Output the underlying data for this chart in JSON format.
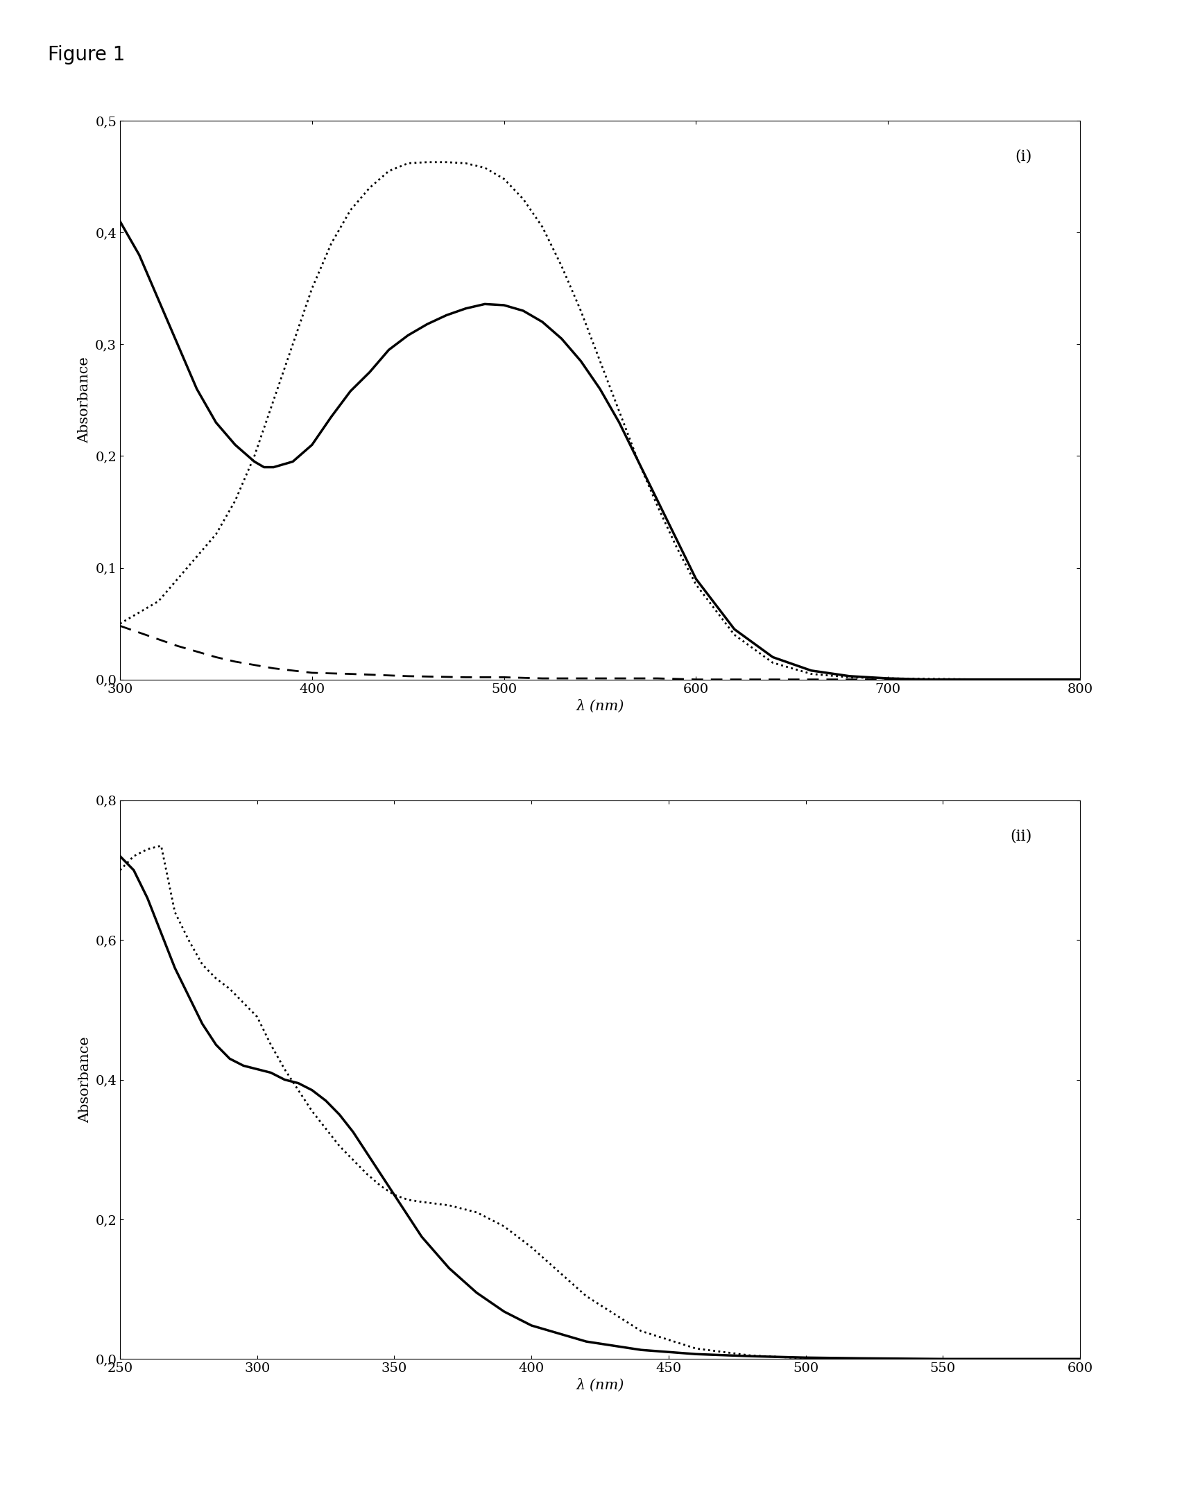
{
  "fig_label": "Figure 1",
  "plot1": {
    "label": "(i)",
    "xlim": [
      300,
      800
    ],
    "ylim": [
      0,
      0.5
    ],
    "xticks": [
      300,
      400,
      500,
      600,
      700,
      800
    ],
    "yticks": [
      0.0,
      0.1,
      0.2,
      0.3,
      0.4,
      0.5
    ],
    "xlabel": "λ (nm)",
    "ylabel": "Absorbance",
    "solid_x": [
      300,
      310,
      320,
      330,
      340,
      350,
      360,
      370,
      375,
      380,
      390,
      400,
      410,
      420,
      430,
      440,
      450,
      460,
      470,
      480,
      490,
      500,
      510,
      520,
      530,
      540,
      550,
      560,
      570,
      580,
      590,
      600,
      620,
      640,
      660,
      680,
      700,
      720,
      750,
      800
    ],
    "solid_y": [
      0.41,
      0.38,
      0.34,
      0.3,
      0.26,
      0.23,
      0.21,
      0.195,
      0.19,
      0.19,
      0.195,
      0.21,
      0.235,
      0.258,
      0.275,
      0.295,
      0.308,
      0.318,
      0.326,
      0.332,
      0.336,
      0.335,
      0.33,
      0.32,
      0.305,
      0.285,
      0.26,
      0.23,
      0.195,
      0.16,
      0.125,
      0.09,
      0.045,
      0.02,
      0.008,
      0.003,
      0.001,
      0.0,
      0.0,
      0.0
    ],
    "dotted_x": [
      300,
      310,
      320,
      330,
      340,
      350,
      360,
      370,
      380,
      390,
      400,
      410,
      420,
      430,
      440,
      450,
      460,
      470,
      480,
      490,
      500,
      510,
      520,
      530,
      540,
      550,
      560,
      570,
      580,
      590,
      600,
      620,
      640,
      660,
      680,
      700,
      750,
      800
    ],
    "dotted_y": [
      0.05,
      0.06,
      0.07,
      0.09,
      0.11,
      0.13,
      0.16,
      0.2,
      0.25,
      0.3,
      0.35,
      0.39,
      0.42,
      0.44,
      0.455,
      0.462,
      0.463,
      0.463,
      0.462,
      0.458,
      0.448,
      0.43,
      0.405,
      0.37,
      0.33,
      0.285,
      0.24,
      0.195,
      0.155,
      0.118,
      0.085,
      0.04,
      0.015,
      0.005,
      0.002,
      0.001,
      0.0,
      0.0
    ],
    "dashed_x": [
      300,
      310,
      320,
      330,
      340,
      350,
      360,
      370,
      380,
      390,
      400,
      420,
      450,
      480,
      500,
      520,
      550,
      580,
      600,
      650,
      700,
      750,
      800
    ],
    "dashed_y": [
      0.048,
      0.042,
      0.036,
      0.03,
      0.025,
      0.02,
      0.016,
      0.013,
      0.01,
      0.008,
      0.006,
      0.005,
      0.003,
      0.002,
      0.002,
      0.001,
      0.001,
      0.001,
      0.0,
      0.0,
      0.0,
      0.0,
      0.0
    ]
  },
  "plot2": {
    "label": "(ii)",
    "xlim": [
      250,
      600
    ],
    "ylim": [
      0,
      0.8
    ],
    "xticks": [
      250,
      300,
      350,
      400,
      450,
      500,
      550,
      600
    ],
    "yticks": [
      0.0,
      0.2,
      0.4,
      0.6,
      0.8
    ],
    "xlabel": "λ (nm)",
    "ylabel": "Absorbance",
    "solid_x": [
      250,
      255,
      260,
      265,
      270,
      275,
      280,
      285,
      290,
      295,
      300,
      305,
      310,
      315,
      320,
      325,
      330,
      335,
      340,
      345,
      350,
      360,
      370,
      380,
      390,
      400,
      420,
      440,
      460,
      480,
      500,
      520,
      550,
      580,
      600
    ],
    "solid_y": [
      0.72,
      0.7,
      0.66,
      0.61,
      0.56,
      0.52,
      0.48,
      0.45,
      0.43,
      0.42,
      0.415,
      0.41,
      0.4,
      0.395,
      0.385,
      0.37,
      0.35,
      0.325,
      0.295,
      0.265,
      0.235,
      0.175,
      0.13,
      0.095,
      0.068,
      0.048,
      0.025,
      0.013,
      0.007,
      0.004,
      0.002,
      0.001,
      0.0,
      0.0,
      0.0
    ],
    "dotted_x": [
      250,
      255,
      260,
      265,
      270,
      275,
      280,
      285,
      290,
      295,
      300,
      305,
      310,
      315,
      320,
      325,
      330,
      335,
      340,
      345,
      350,
      355,
      360,
      370,
      380,
      390,
      400,
      420,
      440,
      460,
      480,
      500
    ],
    "dotted_y": [
      0.7,
      0.72,
      0.73,
      0.735,
      0.64,
      0.6,
      0.565,
      0.545,
      0.53,
      0.51,
      0.49,
      0.45,
      0.415,
      0.385,
      0.355,
      0.33,
      0.305,
      0.285,
      0.265,
      0.248,
      0.235,
      0.228,
      0.225,
      0.22,
      0.21,
      0.19,
      0.16,
      0.09,
      0.04,
      0.015,
      0.005,
      0.001
    ]
  }
}
